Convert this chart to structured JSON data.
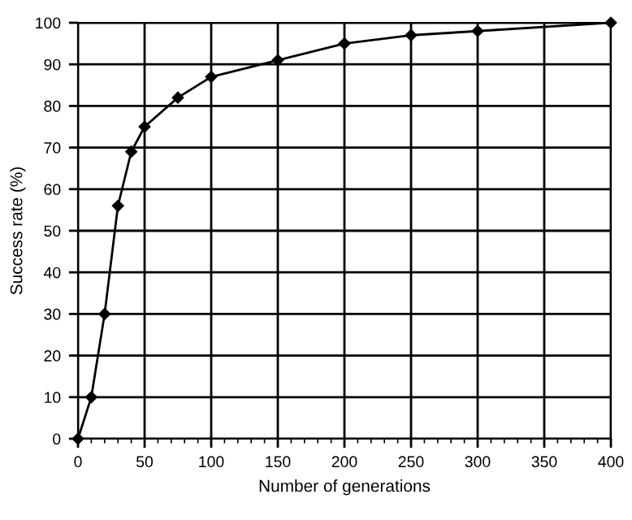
{
  "chart_data": {
    "type": "line",
    "xlabel": "Number of generations",
    "ylabel": "Success rate (%)",
    "x": [
      0,
      10,
      20,
      30,
      40,
      50,
      75,
      100,
      150,
      200,
      250,
      300,
      400
    ],
    "series": [
      {
        "color": "#000000",
        "values": [
          0,
          10,
          30,
          56,
          69,
          75,
          82,
          87,
          91,
          95,
          97,
          98,
          100
        ]
      }
    ],
    "xlim": [
      0,
      400
    ],
    "xticks": [
      0,
      50,
      100,
      150,
      200,
      250,
      300,
      350,
      400
    ],
    "ylim": [
      0,
      100
    ],
    "yticks": [
      0,
      10,
      20,
      30,
      40,
      50,
      60,
      70,
      80,
      90,
      100
    ],
    "grid": true,
    "marker": "diamond",
    "line_style": "solid",
    "legend": false
  }
}
